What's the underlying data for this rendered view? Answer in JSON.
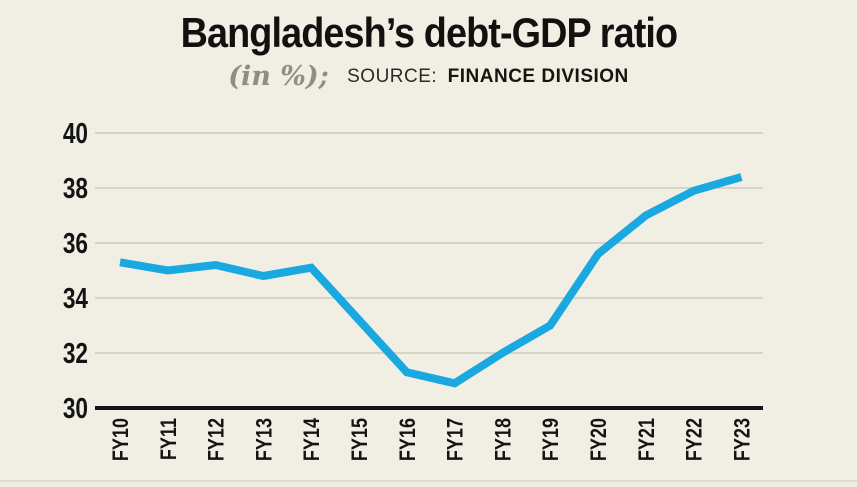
{
  "header": {
    "title": "Bangladesh’s debt-GDP ratio",
    "unit": "(in %);",
    "source_label": "SOURCE:",
    "source_value": "FINANCE DIVISION"
  },
  "chart_data": {
    "type": "line",
    "title": "Bangladesh’s debt-GDP ratio",
    "subtitle": "(in %); SOURCE: FINANCE DIVISION",
    "categories": [
      "FY10",
      "FY11",
      "FY12",
      "FY13",
      "FY14",
      "FY15",
      "FY16",
      "FY17",
      "FY18",
      "FY19",
      "FY20",
      "FY21",
      "FY22",
      "FY23"
    ],
    "series": [
      {
        "name": "Debt-GDP ratio (%)",
        "values": [
          35.3,
          35.0,
          35.2,
          34.8,
          35.1,
          33.2,
          31.3,
          30.9,
          32.0,
          33.0,
          35.6,
          37.0,
          37.9,
          38.4
        ]
      }
    ],
    "xlabel": "",
    "ylabel": "",
    "ylim": [
      30,
      40
    ],
    "yticks": [
      30,
      32,
      34,
      36,
      38,
      40
    ],
    "grid": true,
    "legend_position": "none",
    "colors": {
      "line": "#1aa8e1",
      "background": "#f1efe4",
      "grid": "#c6c4b9",
      "axis": "#141414",
      "tick_text": "#141414"
    }
  }
}
